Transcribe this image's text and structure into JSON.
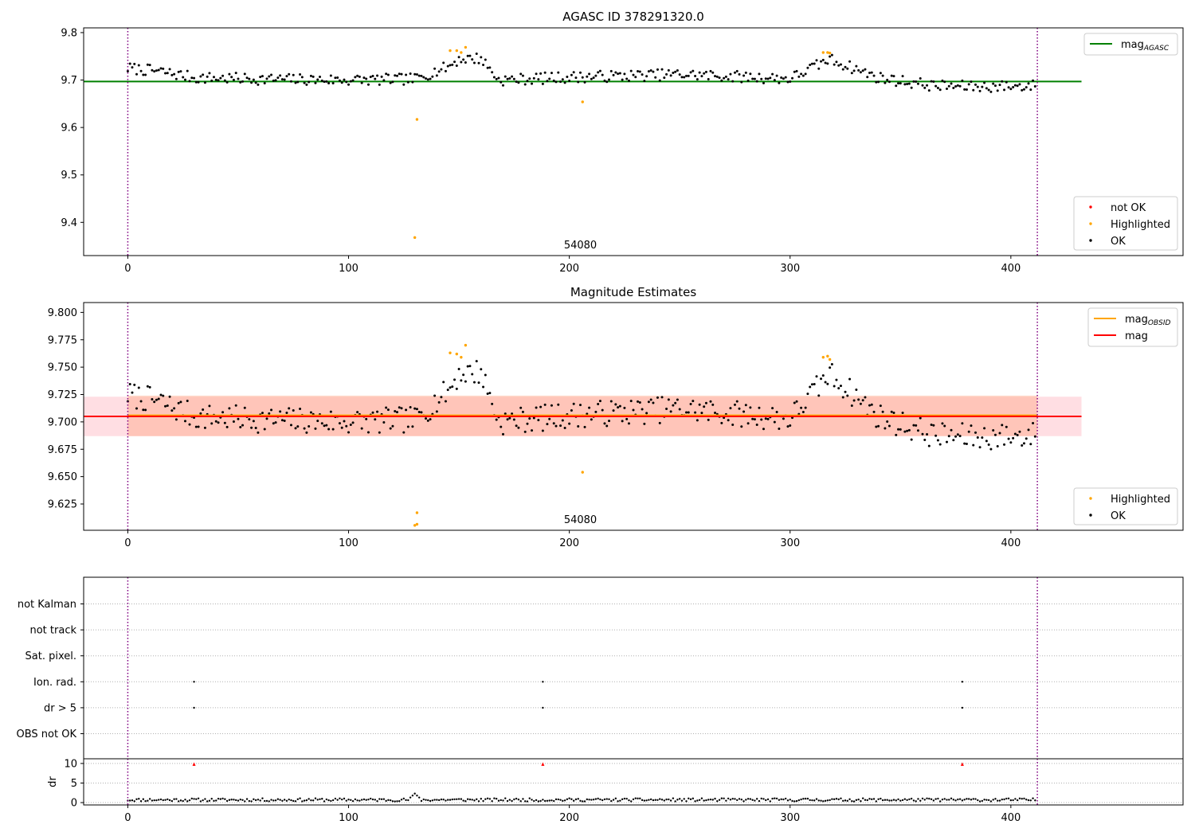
{
  "chart_data": [
    {
      "type": "scatter",
      "title": "AGASC ID 378291320.0",
      "xlabel": "",
      "ylabel": "",
      "xlim": [
        -20,
        478
      ],
      "ylim": [
        9.33,
        9.81
      ],
      "xticks": [
        0,
        100,
        200,
        300,
        400
      ],
      "yticks": [
        9.4,
        9.5,
        9.6,
        9.7,
        9.8
      ],
      "ytick_labels": [
        "9.4",
        "9.5",
        "9.6",
        "9.7",
        "9.8"
      ],
      "annotation": "54080",
      "annotation_x": 205,
      "vlines": [
        0,
        412
      ],
      "hline": {
        "name": "mag_AGASC",
        "y": 9.697,
        "x_range": [
          -20,
          432
        ],
        "color": "#008000"
      },
      "legends": [
        {
          "position": "upper right",
          "items": [
            {
              "label": "mag",
              "sub": "AGASC",
              "kind": "line",
              "color": "#008000"
            }
          ]
        },
        {
          "position": "lower right",
          "items": [
            {
              "label": "not OK",
              "kind": "dot",
              "color": "#ff0000"
            },
            {
              "label": "Highlighted",
              "kind": "dot",
              "color": "#ffa500"
            },
            {
              "label": "OK",
              "kind": "dot",
              "color": "#000000"
            }
          ]
        }
      ],
      "highlighted_points": {
        "x": [
          130,
          131,
          146,
          149,
          151,
          153,
          206,
          315,
          317,
          318
        ],
        "y": [
          9.368,
          9.617,
          9.762,
          9.762,
          9.758,
          9.769,
          9.654,
          9.758,
          9.758,
          9.757
        ]
      },
      "ok_series": {
        "name": "OK",
        "color": "#000000",
        "count": 412,
        "trend_x": [
          0,
          15,
          30,
          60,
          100,
          130,
          145,
          150,
          160,
          168,
          200,
          250,
          300,
          318,
          340,
          365,
          385,
          412
        ],
        "trend_y": [
          9.725,
          9.718,
          9.705,
          9.702,
          9.7,
          9.702,
          9.728,
          9.744,
          9.746,
          9.7,
          9.706,
          9.712,
          9.703,
          9.744,
          9.705,
          9.688,
          9.686,
          9.688
        ],
        "scatter": 0.012
      }
    },
    {
      "type": "scatter",
      "title": "Magnitude Estimates",
      "xlabel": "",
      "ylabel": "",
      "xlim": [
        -20,
        478
      ],
      "ylim": [
        9.601,
        9.809
      ],
      "xticks": [
        0,
        100,
        200,
        300,
        400
      ],
      "yticks": [
        9.625,
        9.65,
        9.675,
        9.7,
        9.725,
        9.75,
        9.775,
        9.8
      ],
      "ytick_labels": [
        "9.625",
        "9.650",
        "9.675",
        "9.700",
        "9.725",
        "9.750",
        "9.775",
        "9.800"
      ],
      "annotation": "54080",
      "annotation_x": 205,
      "vlines": [
        0,
        412
      ],
      "bands": [
        {
          "y0": 9.687,
          "y1": 9.723,
          "x_range": [
            -20,
            432
          ],
          "color": "#ffb6c1",
          "opacity": 0.45
        },
        {
          "y0": 9.687,
          "y1": 9.724,
          "x_range": [
            0,
            412
          ],
          "color": "#ffa07a",
          "opacity": 0.4
        }
      ],
      "hlines": [
        {
          "name": "mag_OBSID",
          "y": 9.706,
          "x_range": [
            0,
            412
          ],
          "color": "#ffa500"
        },
        {
          "name": "mag",
          "y": 9.705,
          "x_range": [
            -20,
            432
          ],
          "color": "#ff0000"
        }
      ],
      "legends": [
        {
          "position": "upper right",
          "items": [
            {
              "label": "mag",
              "sub": "OBSID",
              "kind": "line",
              "color": "#ffa500"
            },
            {
              "label": "mag",
              "sub": "",
              "kind": "line",
              "color": "#ff0000"
            }
          ]
        },
        {
          "position": "lower right",
          "items": [
            {
              "label": "Highlighted",
              "kind": "dot",
              "color": "#ffa500"
            },
            {
              "label": "OK",
              "kind": "dot",
              "color": "#000000"
            }
          ]
        }
      ],
      "highlighted_points": {
        "x": [
          130,
          131,
          131,
          146,
          149,
          151,
          153,
          206,
          315,
          317,
          318
        ],
        "y": [
          9.6055,
          9.6065,
          9.617,
          9.763,
          9.762,
          9.759,
          9.77,
          9.654,
          9.759,
          9.76,
          9.757
        ]
      },
      "ok_series": {
        "name": "OK",
        "color": "#000000",
        "count": 412,
        "trend_x": [
          0,
          15,
          30,
          60,
          100,
          130,
          145,
          150,
          160,
          168,
          200,
          250,
          300,
          318,
          340,
          365,
          385,
          412
        ],
        "trend_y": [
          9.725,
          9.718,
          9.705,
          9.702,
          9.7,
          9.702,
          9.728,
          9.744,
          9.746,
          9.7,
          9.706,
          9.712,
          9.703,
          9.744,
          9.705,
          9.688,
          9.686,
          9.688
        ],
        "scatter": 0.012
      }
    },
    {
      "type": "scatter",
      "title": "",
      "xlim": [
        -20,
        478
      ],
      "categories": [
        "OBS not OK",
        "dr > 5",
        "Ion. rad.",
        "Sat. pixel.",
        "not track",
        "not Kalman"
      ],
      "vlines": [
        0,
        412
      ],
      "flags": [
        {
          "category": "Ion. rad.",
          "x": [
            30,
            188,
            378
          ]
        },
        {
          "category": "dr > 5",
          "x": [
            30,
            188,
            378
          ]
        }
      ]
    },
    {
      "type": "scatter",
      "title": "",
      "ylabel": "dr",
      "xlim": [
        -20,
        478
      ],
      "ylim": [
        -0.6,
        11.2
      ],
      "xticks": [
        0,
        100,
        200,
        300,
        400
      ],
      "yticks": [
        0,
        5,
        10
      ],
      "vlines": [
        0,
        412
      ],
      "outliers": {
        "x": [
          30,
          188,
          378
        ],
        "y": [
          9.8,
          9.8,
          9.8
        ],
        "color": "#ff0000"
      },
      "dr_series": {
        "name": "dr",
        "count": 412,
        "baseline": 0.7,
        "bump_x": 130,
        "bump_y": 2.3
      }
    }
  ]
}
